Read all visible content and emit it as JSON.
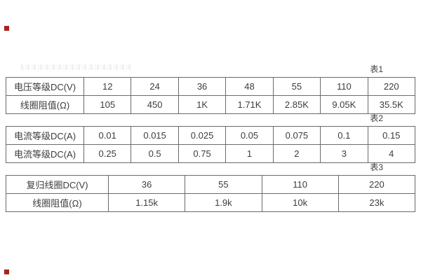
{
  "theme": {
    "background": "#ffffff",
    "border": "#6a6a6a",
    "text": "#3c3c3c",
    "red_marker": "#a8241a"
  },
  "artifacts": {
    "red_square_top": "red image marker",
    "red_square_bottom": "red image marker",
    "faint_text": "illegible light-gray text line above table 1"
  },
  "tables": [
    {
      "label": "表1",
      "rows": [
        {
          "header": "电压等级DC(V)",
          "cells": [
            "12",
            "24",
            "36",
            "48",
            "55",
            "110",
            "220"
          ]
        },
        {
          "header": "线圈阻值(Ω)",
          "cells": [
            "105",
            "450",
            "1K",
            "1.71K",
            "2.85K",
            "9.05K",
            "35.5K"
          ]
        }
      ]
    },
    {
      "label": "表2",
      "rows": [
        {
          "header": "电流等级DC(A)",
          "cells": [
            "0.01",
            "0.015",
            "0.025",
            "0.05",
            "0.075",
            "0.1",
            "0.15"
          ]
        },
        {
          "header": "电流等级DC(A)",
          "cells": [
            "0.25",
            "0.5",
            "0.75",
            "1",
            "2",
            "3",
            "4"
          ]
        }
      ]
    },
    {
      "label": "表3",
      "rows": [
        {
          "header": "复归线圈DC(V)",
          "cells": [
            "36",
            "55",
            "110",
            "220"
          ]
        },
        {
          "header": "线圈阻值(Ω)",
          "cells": [
            "1.15k",
            "1.9k",
            "10k",
            "23k"
          ]
        }
      ]
    }
  ]
}
